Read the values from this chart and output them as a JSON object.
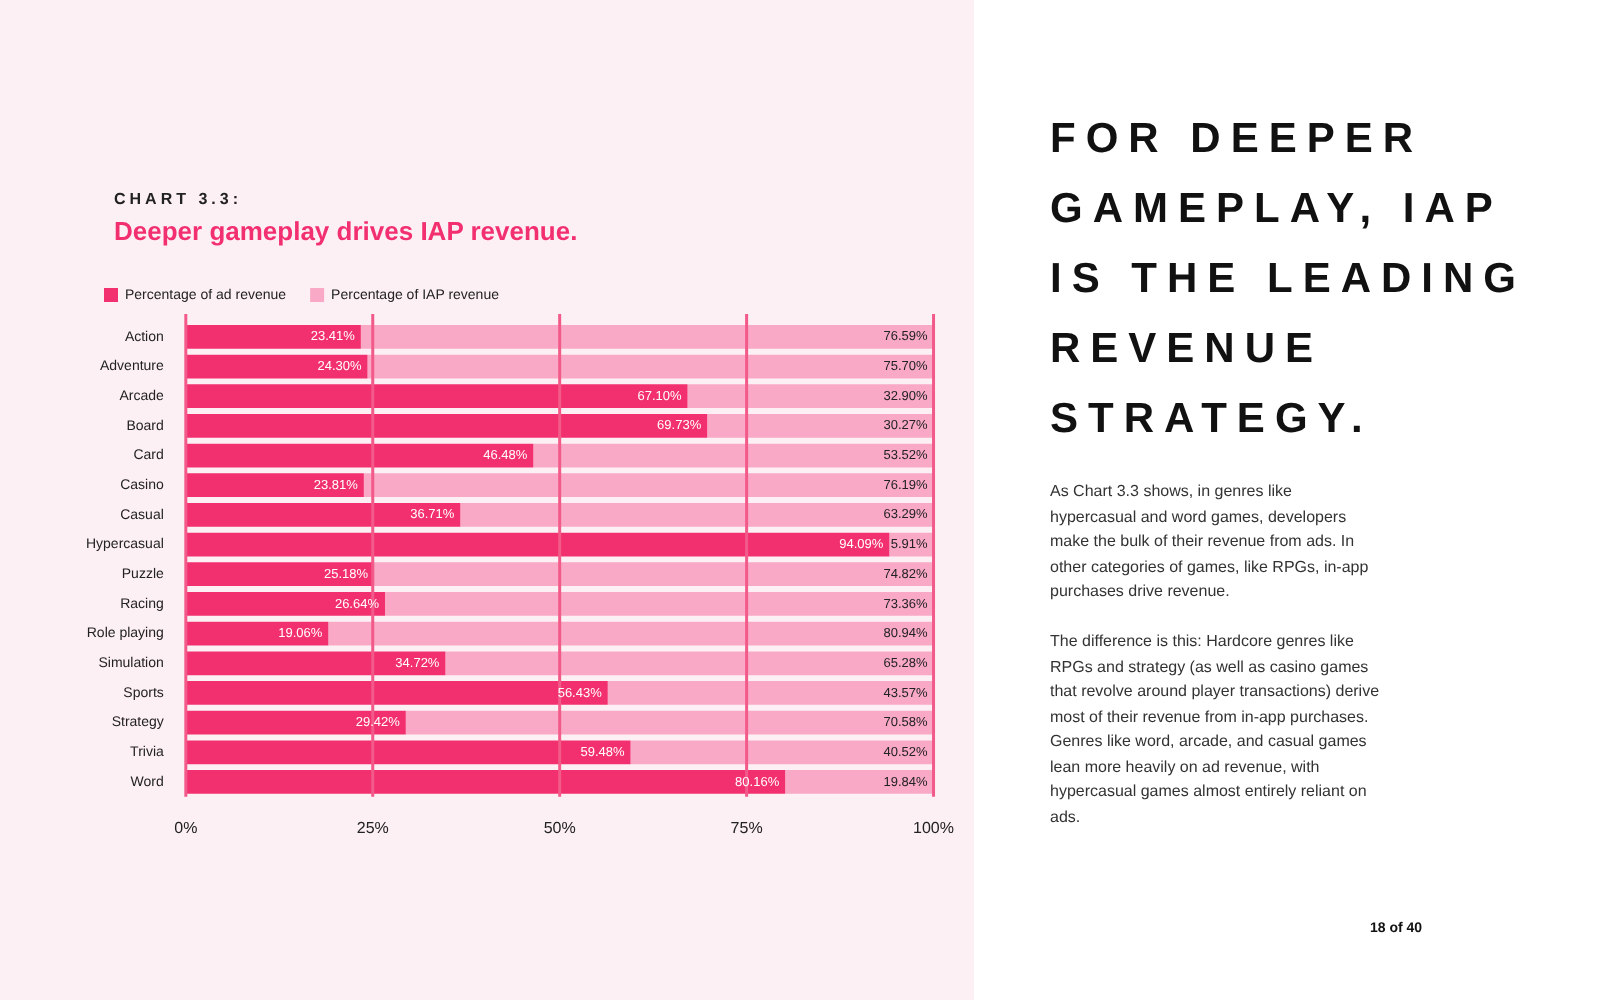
{
  "chart_data": {
    "type": "bar",
    "orientation": "horizontal",
    "stacked": true,
    "subtitle": "CHART 3.3:",
    "title": "Deeper gameplay drives IAP revenue.",
    "categories": [
      "Action",
      "Adventure",
      "Arcade",
      "Board",
      "Card",
      "Casino",
      "Casual",
      "Hypercasual",
      "Puzzle",
      "Racing",
      "Role playing",
      "Simulation",
      "Sports",
      "Strategy",
      "Trivia",
      "Word"
    ],
    "series": [
      {
        "name": "Percentage of ad revenue",
        "color": "#f3306f",
        "values": [
          23.41,
          24.3,
          67.1,
          69.73,
          46.48,
          23.81,
          36.71,
          94.09,
          25.18,
          26.64,
          19.06,
          34.72,
          56.43,
          29.42,
          59.48,
          80.16
        ],
        "value_labels": [
          "23.41%",
          "24.30%",
          "67.10%",
          "69.73%",
          "46.48%",
          "23.81%",
          "36.71%",
          "94.09%",
          "25.18%",
          "26.64%",
          "19.06%",
          "34.72%",
          "56.43%",
          "29.42%",
          "59.48%",
          "80.16%"
        ]
      },
      {
        "name": "Percentage of IAP revenue",
        "color": "#f9a9c6",
        "values": [
          76.59,
          75.7,
          32.9,
          30.27,
          53.52,
          76.19,
          63.29,
          5.91,
          74.82,
          73.36,
          80.94,
          65.28,
          43.57,
          70.58,
          40.52,
          19.84
        ],
        "value_labels": [
          "76.59%",
          "75.70%",
          "32.90%",
          "30.27%",
          "53.52%",
          "76.19%",
          "63.29%",
          "5.91%",
          "74.82%",
          "73.36%",
          "80.94%",
          "65.28%",
          "43.57%",
          "70.58%",
          "40.52%",
          "19.84%"
        ]
      }
    ],
    "xlim": [
      0,
      100
    ],
    "xticks": [
      {
        "value": 0,
        "label": "0%"
      },
      {
        "value": 25,
        "label": "25%"
      },
      {
        "value": 50,
        "label": "50%"
      },
      {
        "value": 75,
        "label": "75%"
      },
      {
        "value": 100,
        "label": "100%"
      }
    ],
    "grid": "x",
    "legend": "top",
    "annotations": [
      "FOR DEEPER GAMEPLAY, IAP IS THE LEADING REVENUE STRATEGY.",
      "As Chart 3.3 shows, in genres like hypercasual and word games, developers make the bulk of their revenue from ads. In other categories of games, like RPGs, in-app purchases drive revenue.",
      "The difference is this: Hardcore genres like RPGs and strategy (as well as casino games that revolve around player transactions) derive most of their revenue from in-app purchases. Genres like word, arcade, and casual games lean more heavily on ad revenue, with hypercasual games almost entirely reliant on ads.",
      "18 of 40"
    ]
  }
}
